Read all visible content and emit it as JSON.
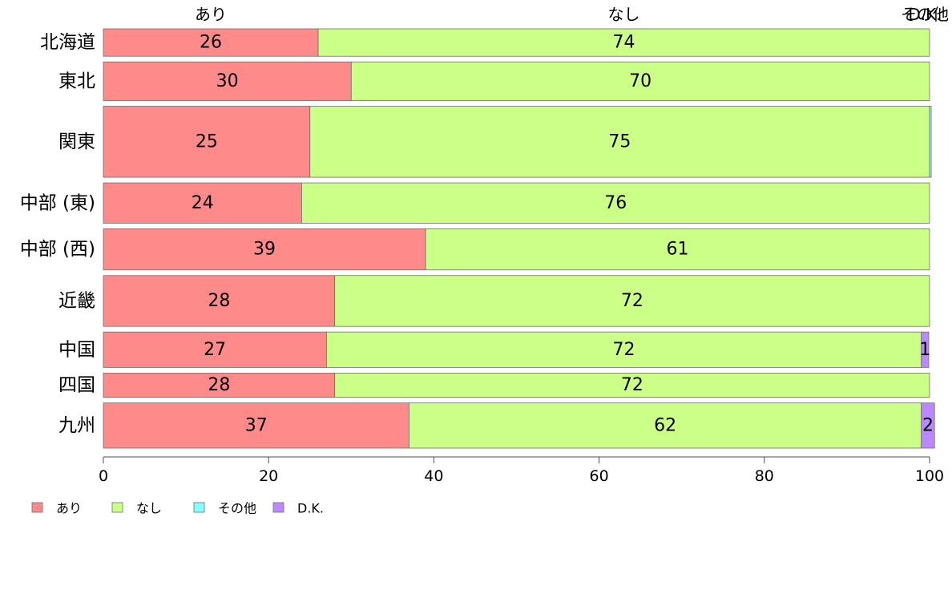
{
  "chart_data": {
    "type": "bar",
    "orientation": "horizontal",
    "stacked": true,
    "normalized_percent": true,
    "categories": [
      "北海道",
      "東北",
      "関東",
      "中部 (東)",
      "中部 (西)",
      "近畿",
      "中国",
      "四国",
      "九州"
    ],
    "category_weights": [
      34,
      48,
      88,
      50,
      51,
      63,
      44,
      30,
      56
    ],
    "series": [
      {
        "name": "あり",
        "color": "#ff8a8a",
        "values": [
          26,
          30,
          25,
          24,
          39,
          28,
          27,
          28,
          37
        ],
        "labels": [
          "26",
          "30",
          "25",
          "24",
          "39",
          "28",
          "27",
          "28",
          "37"
        ]
      },
      {
        "name": "なし",
        "color": "#ccff88",
        "values": [
          74,
          70,
          75,
          76,
          61,
          72,
          72,
          72,
          62
        ],
        "labels": [
          "74",
          "70",
          "75",
          "76",
          "61",
          "72",
          "72",
          "72",
          "62"
        ]
      },
      {
        "name": "その他",
        "color": "#88ffff",
        "values": [
          0,
          0,
          0.2,
          0,
          0,
          0,
          0,
          0,
          0
        ],
        "labels": [
          "",
          "",
          "",
          "",
          "",
          "",
          "",
          "",
          ""
        ]
      },
      {
        "name": "D.K.",
        "color": "#bb88ff",
        "values": [
          0,
          0,
          0,
          0,
          0,
          0,
          0.9,
          0,
          1.6
        ],
        "labels": [
          "",
          "",
          "",
          "",
          "",
          "",
          "1",
          "",
          "2"
        ]
      }
    ],
    "top_labels": [
      "あり",
      "なし",
      "その他",
      "D.K."
    ],
    "x_ticks": [
      0,
      20,
      40,
      60,
      80,
      100
    ],
    "xlim": [
      0,
      100
    ],
    "legend_position": "bottom-left",
    "grid": false
  }
}
